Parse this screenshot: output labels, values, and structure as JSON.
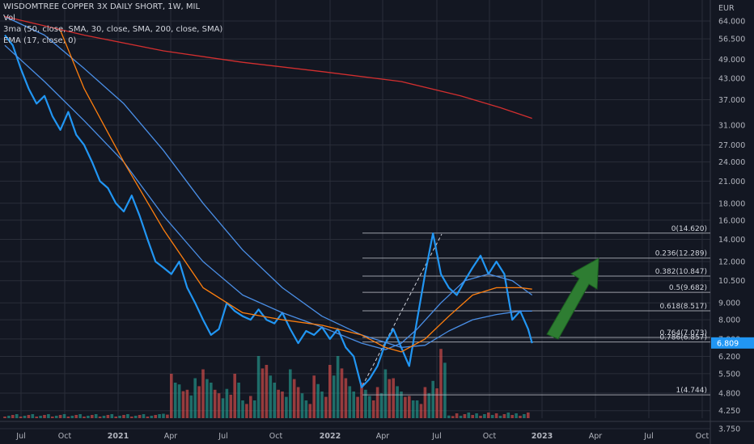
{
  "legend": {
    "title": "WISDOMTREE COPPER 3X DAILY SHORT, 1W, MIL",
    "vol": "Vol",
    "sma": "3ma (50, close, SMA, 30, close, SMA, 200, close, SMA)",
    "ema": "EMA (17, close, 0)"
  },
  "currency": "EUR",
  "last_price": "6.809",
  "colors": {
    "background": "#131722",
    "price": "#2196f3",
    "sma50": "#4a8fe7",
    "sma30": "#4a8fe7",
    "sma200": "#d32f2f",
    "ema17": "#ff7f0e",
    "vol_up": "#26a69a",
    "vol_down": "#ef5350",
    "fib": "#b2b5be",
    "arrow": "#2e7d32"
  },
  "chart_data": {
    "type": "line",
    "scale": "log",
    "x_ticks": [
      "Jul",
      "Oct",
      "2021",
      "Apr",
      "Jul",
      "Oct",
      "2022",
      "Apr",
      "Jul",
      "Oct",
      "2023",
      "Apr",
      "Jul",
      "Oct"
    ],
    "y_ticks": [
      "64.000",
      "56.500",
      "49.000",
      "43.000",
      "37.000",
      "31.000",
      "27.000",
      "24.000",
      "21.000",
      "18.000",
      "16.000",
      "14.000",
      "12.000",
      "10.500",
      "9.000",
      "8.000",
      "7.000",
      "6.200",
      "5.500",
      "4.800",
      "4.250",
      "3.750"
    ],
    "fib_levels": [
      {
        "label": "0(14.620)",
        "value": 14.62
      },
      {
        "label": "0.236(12.289)",
        "value": 12.289
      },
      {
        "label": "0.382(10.847)",
        "value": 10.847
      },
      {
        "label": "0.5(9.682)",
        "value": 9.682
      },
      {
        "label": "0.618(8.517)",
        "value": 8.517
      },
      {
        "label": "0.764(7.073)",
        "value": 7.073
      },
      {
        "label": "0.786(6.857)",
        "value": 6.857
      },
      {
        "label": "1(4.744)",
        "value": 4.744
      }
    ],
    "series": [
      {
        "key": "price",
        "values": [
          [
            0,
            58
          ],
          [
            2,
            54
          ],
          [
            4,
            46
          ],
          [
            6,
            40
          ],
          [
            8,
            36
          ],
          [
            10,
            38
          ],
          [
            12,
            33
          ],
          [
            14,
            30
          ],
          [
            16,
            34
          ],
          [
            18,
            29
          ],
          [
            20,
            27
          ],
          [
            22,
            24
          ],
          [
            24,
            21
          ],
          [
            26,
            20
          ],
          [
            28,
            18
          ],
          [
            30,
            17
          ],
          [
            32,
            19
          ],
          [
            34,
            16.5
          ],
          [
            36,
            14
          ],
          [
            38,
            12
          ],
          [
            40,
            11.5
          ],
          [
            42,
            11
          ],
          [
            44,
            12
          ],
          [
            46,
            10
          ],
          [
            48,
            9
          ],
          [
            50,
            8
          ],
          [
            52,
            7.2
          ],
          [
            54,
            7.5
          ],
          [
            56,
            9
          ],
          [
            58,
            8.5
          ],
          [
            60,
            8.2
          ],
          [
            62,
            8
          ],
          [
            64,
            8.6
          ],
          [
            66,
            8
          ],
          [
            68,
            7.8
          ],
          [
            70,
            8.4
          ],
          [
            72,
            7.5
          ],
          [
            74,
            6.8
          ],
          [
            76,
            7.4
          ],
          [
            78,
            7.2
          ],
          [
            80,
            7.6
          ],
          [
            82,
            7
          ],
          [
            84,
            7.5
          ],
          [
            86,
            6.6
          ],
          [
            88,
            6.2
          ],
          [
            90,
            5.0
          ],
          [
            92,
            5.3
          ],
          [
            94,
            5.8
          ],
          [
            96,
            6.8
          ],
          [
            98,
            7.5
          ],
          [
            100,
            6.6
          ],
          [
            102,
            5.8
          ],
          [
            104,
            8
          ],
          [
            106,
            11
          ],
          [
            108,
            14.6
          ],
          [
            110,
            11
          ],
          [
            112,
            10
          ],
          [
            114,
            9.5
          ],
          [
            116,
            10.5
          ],
          [
            118,
            11.5
          ],
          [
            120,
            12.5
          ],
          [
            122,
            11
          ],
          [
            124,
            12
          ],
          [
            126,
            11
          ],
          [
            128,
            8
          ],
          [
            130,
            8.5
          ],
          [
            132,
            7.5
          ],
          [
            133,
            6.8
          ]
        ]
      },
      {
        "key": "sma30",
        "values": [
          [
            0,
            54
          ],
          [
            10,
            42
          ],
          [
            20,
            32
          ],
          [
            30,
            24
          ],
          [
            40,
            16.5
          ],
          [
            50,
            12
          ],
          [
            60,
            9.5
          ],
          [
            70,
            8.4
          ],
          [
            80,
            7.6
          ],
          [
            90,
            6.8
          ],
          [
            96,
            6.5
          ],
          [
            100,
            6.8
          ],
          [
            104,
            7.5
          ],
          [
            110,
            9
          ],
          [
            116,
            10.5
          ],
          [
            122,
            11
          ],
          [
            128,
            10.5
          ],
          [
            133,
            9.5
          ]
        ]
      },
      {
        "key": "sma50",
        "values": [
          [
            0,
            66
          ],
          [
            10,
            58
          ],
          [
            20,
            46
          ],
          [
            30,
            36
          ],
          [
            40,
            26
          ],
          [
            50,
            18
          ],
          [
            60,
            13
          ],
          [
            70,
            10
          ],
          [
            80,
            8.2
          ],
          [
            90,
            7.2
          ],
          [
            100,
            6.6
          ],
          [
            106,
            6.7
          ],
          [
            112,
            7.4
          ],
          [
            118,
            8
          ],
          [
            124,
            8.3
          ],
          [
            130,
            8.5
          ],
          [
            133,
            8.5
          ]
        ]
      },
      {
        "key": "ema17",
        "values": [
          [
            14,
            60
          ],
          [
            20,
            40
          ],
          [
            30,
            24
          ],
          [
            40,
            15
          ],
          [
            50,
            10
          ],
          [
            60,
            8.4
          ],
          [
            70,
            8
          ],
          [
            80,
            7.7
          ],
          [
            90,
            7.2
          ],
          [
            96,
            6.6
          ],
          [
            100,
            6.4
          ],
          [
            106,
            7
          ],
          [
            112,
            8.2
          ],
          [
            118,
            9.5
          ],
          [
            124,
            10
          ],
          [
            130,
            10
          ],
          [
            133,
            9.9
          ]
        ]
      },
      {
        "key": "sma200",
        "values": [
          [
            0,
            66
          ],
          [
            20,
            58
          ],
          [
            40,
            52
          ],
          [
            60,
            48
          ],
          [
            80,
            45
          ],
          [
            100,
            42
          ],
          [
            115,
            38
          ],
          [
            125,
            35
          ],
          [
            133,
            32.5
          ]
        ]
      }
    ],
    "volume": [
      [
        40,
        0.05
      ],
      [
        42,
        0.5
      ],
      [
        44,
        0.38
      ],
      [
        46,
        0.32
      ],
      [
        48,
        0.45
      ],
      [
        50,
        0.55
      ],
      [
        52,
        0.4
      ],
      [
        54,
        0.28
      ],
      [
        56,
        0.33
      ],
      [
        58,
        0.5
      ],
      [
        60,
        0.2
      ],
      [
        62,
        0.25
      ],
      [
        64,
        0.7
      ],
      [
        66,
        0.6
      ],
      [
        68,
        0.4
      ],
      [
        70,
        0.3
      ],
      [
        72,
        0.55
      ],
      [
        74,
        0.35
      ],
      [
        76,
        0.2
      ],
      [
        78,
        0.48
      ],
      [
        80,
        0.3
      ],
      [
        82,
        0.6
      ],
      [
        84,
        0.7
      ],
      [
        86,
        0.45
      ],
      [
        88,
        0.3
      ],
      [
        90,
        0.4
      ],
      [
        92,
        0.25
      ],
      [
        94,
        0.35
      ],
      [
        96,
        0.55
      ],
      [
        98,
        0.45
      ],
      [
        100,
        0.3
      ],
      [
        102,
        0.25
      ],
      [
        104,
        0.2
      ],
      [
        106,
        0.35
      ],
      [
        108,
        0.42
      ],
      [
        110,
        0.78
      ],
      [
        112,
        0.03
      ]
    ]
  }
}
